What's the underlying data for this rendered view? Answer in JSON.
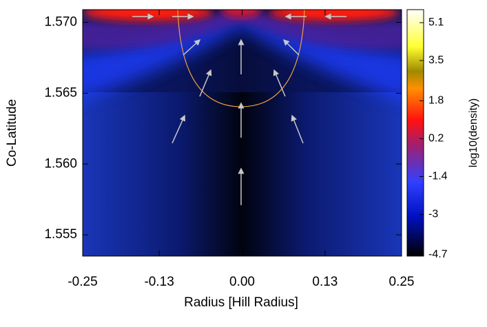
{
  "chart_data": {
    "type": "heatmap",
    "xlabel": "Radius [Hill Radius]",
    "ylabel": "Co-Latitude",
    "colorbar_label": "log10(density)",
    "xlim": [
      -0.25,
      0.25
    ],
    "xticks": [
      -0.25,
      -0.13,
      {
        "value": 0,
        "label": "0.00"
      },
      0.13,
      0.25
    ],
    "ylim": [
      1.5535,
      1.5709
    ],
    "yticks": [
      1.555,
      {
        "value": 1.56,
        "label": "1.560"
      },
      1.565,
      {
        "value": 1.57,
        "label": "1.570"
      }
    ],
    "clim": [
      -4.76,
      5.65
    ],
    "cticks": [
      5.1,
      3.5,
      1.8,
      0.2,
      -1.4,
      -3.0,
      -4.7
    ]
  }
}
